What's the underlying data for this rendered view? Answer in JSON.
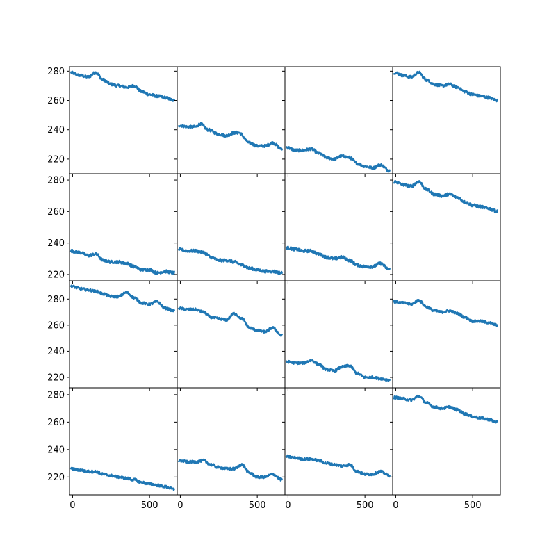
{
  "figure": {
    "rows": 4,
    "cols": 4,
    "line_color": "#1f77b4",
    "background": "#ffffff"
  },
  "chart_data": {
    "type": "line",
    "layout": "4x4 grid of small multiples, shared x within each column, shared y within each row",
    "xlim": [
      -20,
      680
    ],
    "x_ticks": [
      0,
      500
    ],
    "x_tick_labels": [
      "0",
      "500"
    ],
    "rows": [
      {
        "ylim": [
          210,
          283
        ],
        "y_ticks": [
          220,
          240,
          260,
          280
        ],
        "y_tick_labels": [
          "220",
          "240",
          "260",
          "280"
        ]
      },
      {
        "ylim": [
          216,
          284
        ],
        "y_ticks": [
          220,
          240,
          260,
          280
        ],
        "y_tick_labels": [
          "220",
          "240",
          "260",
          "280"
        ]
      },
      {
        "ylim": [
          212,
          294
        ],
        "y_ticks": [
          220,
          240,
          260,
          280
        ],
        "y_tick_labels": [
          "220",
          "240",
          "260",
          "280"
        ]
      },
      {
        "ylim": [
          207,
          285
        ],
        "y_ticks": [
          220,
          240,
          260,
          280
        ],
        "y_tick_labels": [
          "220",
          "240",
          "260",
          "280"
        ]
      }
    ],
    "panels": [
      {
        "row": 0,
        "col": 0,
        "x": [
          -10,
          50,
          100,
          150,
          200,
          250,
          300,
          350,
          400,
          450,
          500,
          550,
          600,
          660
        ],
        "y": [
          279,
          277,
          276,
          279,
          274,
          271,
          270,
          269,
          270,
          266,
          264,
          263,
          262,
          260
        ]
      },
      {
        "row": 0,
        "col": 1,
        "x": [
          -10,
          50,
          100,
          130,
          180,
          250,
          300,
          350,
          380,
          450,
          500,
          550,
          600,
          660
        ],
        "y": [
          243,
          242,
          242,
          244,
          240,
          237,
          236,
          238,
          238,
          231,
          229,
          229,
          231,
          227
        ]
      },
      {
        "row": 0,
        "col": 2,
        "x": [
          -10,
          50,
          100,
          150,
          200,
          250,
          300,
          350,
          400,
          450,
          500,
          550,
          600,
          660
        ],
        "y": [
          228,
          226,
          226,
          227,
          224,
          221,
          220,
          222,
          221,
          217,
          215,
          214,
          216,
          212
        ]
      },
      {
        "row": 0,
        "col": 3,
        "x": [
          -10,
          50,
          100,
          150,
          200,
          250,
          300,
          350,
          400,
          450,
          500,
          550,
          600,
          660
        ],
        "y": [
          279,
          277,
          276,
          279,
          274,
          271,
          270,
          271,
          269,
          266,
          264,
          263,
          262,
          260
        ]
      },
      {
        "row": 1,
        "col": 0,
        "x": [
          -10,
          50,
          100,
          150,
          200,
          250,
          300,
          350,
          400,
          450,
          500,
          550,
          600,
          660
        ],
        "y": [
          235,
          234,
          232,
          233,
          229,
          228,
          228,
          227,
          225,
          223,
          223,
          221,
          222,
          221
        ]
      },
      {
        "row": 1,
        "col": 1,
        "x": [
          -10,
          50,
          100,
          150,
          200,
          250,
          300,
          350,
          400,
          450,
          500,
          550,
          600,
          660
        ],
        "y": [
          236,
          235,
          235,
          234,
          231,
          229,
          229,
          228,
          226,
          224,
          223,
          222,
          222,
          221
        ]
      },
      {
        "row": 1,
        "col": 2,
        "x": [
          -10,
          50,
          100,
          150,
          200,
          250,
          300,
          350,
          400,
          450,
          500,
          550,
          600,
          660
        ],
        "y": [
          237,
          236,
          235,
          235,
          233,
          231,
          230,
          231,
          229,
          226,
          225,
          225,
          227,
          223
        ]
      },
      {
        "row": 1,
        "col": 3,
        "x": [
          -10,
          50,
          100,
          150,
          200,
          250,
          300,
          350,
          400,
          450,
          500,
          550,
          600,
          660
        ],
        "y": [
          279,
          277,
          276,
          279,
          274,
          271,
          270,
          271,
          269,
          266,
          264,
          263,
          262,
          260
        ]
      },
      {
        "row": 2,
        "col": 0,
        "x": [
          -10,
          50,
          100,
          150,
          200,
          250,
          300,
          350,
          400,
          450,
          500,
          550,
          600,
          660
        ],
        "y": [
          290,
          288,
          287,
          286,
          284,
          282,
          282,
          285,
          281,
          277,
          276,
          278,
          273,
          271
        ]
      },
      {
        "row": 2,
        "col": 1,
        "x": [
          -10,
          50,
          100,
          150,
          200,
          250,
          300,
          350,
          400,
          450,
          500,
          550,
          600,
          660
        ],
        "y": [
          273,
          272,
          272,
          270,
          266,
          265,
          264,
          269,
          265,
          258,
          256,
          255,
          258,
          252
        ]
      },
      {
        "row": 2,
        "col": 2,
        "x": [
          -10,
          50,
          100,
          150,
          200,
          250,
          300,
          350,
          400,
          450,
          500,
          550,
          600,
          660
        ],
        "y": [
          232,
          231,
          231,
          233,
          230,
          226,
          225,
          228,
          229,
          223,
          220,
          220,
          219,
          218
        ]
      },
      {
        "row": 2,
        "col": 3,
        "x": [
          -10,
          50,
          100,
          150,
          200,
          250,
          300,
          350,
          400,
          450,
          500,
          550,
          600,
          660
        ],
        "y": [
          278,
          277,
          276,
          279,
          274,
          271,
          270,
          271,
          269,
          266,
          263,
          263,
          262,
          260
        ]
      },
      {
        "row": 3,
        "col": 0,
        "x": [
          -10,
          50,
          100,
          150,
          200,
          250,
          300,
          350,
          400,
          450,
          500,
          550,
          600,
          660
        ],
        "y": [
          226,
          225,
          224,
          224,
          222,
          221,
          220,
          219,
          218,
          216,
          215,
          214,
          213,
          211
        ]
      },
      {
        "row": 3,
        "col": 1,
        "x": [
          -10,
          50,
          100,
          150,
          200,
          250,
          300,
          350,
          400,
          450,
          500,
          550,
          600,
          660
        ],
        "y": [
          232,
          231,
          231,
          232,
          229,
          227,
          226,
          226,
          229,
          223,
          220,
          220,
          222,
          218
        ]
      },
      {
        "row": 3,
        "col": 2,
        "x": [
          -10,
          50,
          100,
          150,
          200,
          250,
          300,
          350,
          400,
          450,
          500,
          550,
          600,
          660
        ],
        "y": [
          235,
          234,
          233,
          233,
          232,
          230,
          229,
          228,
          229,
          224,
          222,
          222,
          224,
          221
        ]
      },
      {
        "row": 3,
        "col": 3,
        "x": [
          -10,
          50,
          100,
          150,
          200,
          250,
          300,
          350,
          400,
          450,
          500,
          550,
          600,
          660
        ],
        "y": [
          278,
          277,
          276,
          279,
          274,
          271,
          270,
          271,
          269,
          266,
          264,
          263,
          262,
          260
        ]
      }
    ]
  }
}
